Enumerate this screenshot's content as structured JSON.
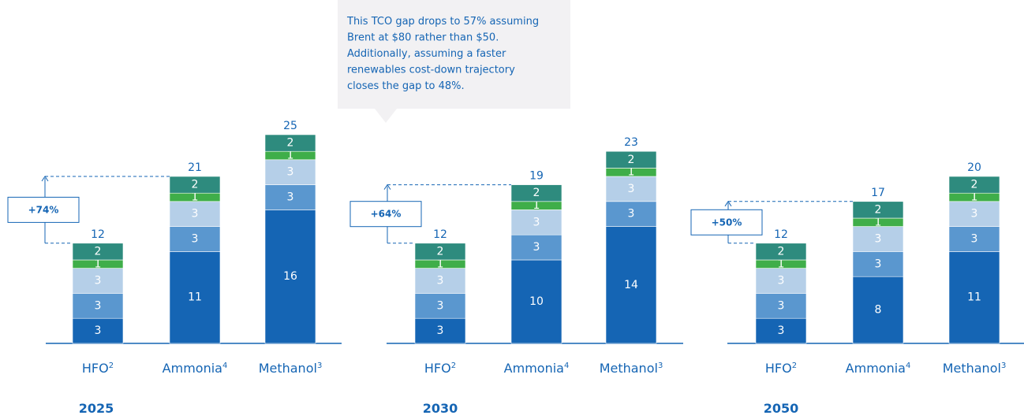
{
  "chart_data": {
    "type": "bar",
    "stacked": true,
    "series_colors": [
      "#1565b4",
      "#5a97cf",
      "#b5cfe8",
      "#3fae49",
      "#2e8b7e"
    ],
    "panels": [
      {
        "year": "2025",
        "categories": [
          {
            "name": "HFO",
            "sup": "2",
            "segments": [
              3,
              3,
              3,
              1,
              2
            ],
            "total": "12"
          },
          {
            "name": "Ammonia",
            "sup": "4",
            "segments": [
              11,
              3,
              3,
              1,
              2
            ],
            "total": "21"
          },
          {
            "name": "Methanol",
            "sup": "3",
            "segments": [
              16,
              3,
              3,
              1,
              2
            ],
            "total": "25"
          }
        ],
        "gap": "+74%"
      },
      {
        "year": "2030",
        "categories": [
          {
            "name": "HFO",
            "sup": "2",
            "segments": [
              3,
              3,
              3,
              1,
              2
            ],
            "total": "12"
          },
          {
            "name": "Ammonia",
            "sup": "4",
            "segments": [
              10,
              3,
              3,
              1,
              2
            ],
            "total": "19"
          },
          {
            "name": "Methanol",
            "sup": "3",
            "segments": [
              14,
              3,
              3,
              1,
              2
            ],
            "total": "23"
          }
        ],
        "gap": "+64%"
      },
      {
        "year": "2050",
        "categories": [
          {
            "name": "HFO",
            "sup": "2",
            "segments": [
              3,
              3,
              3,
              1,
              2
            ],
            "total": "12"
          },
          {
            "name": "Ammonia",
            "sup": "4",
            "segments": [
              8,
              3,
              3,
              1,
              2
            ],
            "total": "17"
          },
          {
            "name": "Methanol",
            "sup": "3",
            "segments": [
              11,
              3,
              3,
              1,
              2
            ],
            "total": "20"
          }
        ],
        "gap": "+50%"
      }
    ],
    "annotation": {
      "lines": [
        "This TCO gap drops to 57% assuming",
        "Brent at $80 rather than $50.",
        "Additionally, assuming a faster",
        "renewables cost-down trajectory",
        "closes the gap to 48%."
      ]
    }
  }
}
